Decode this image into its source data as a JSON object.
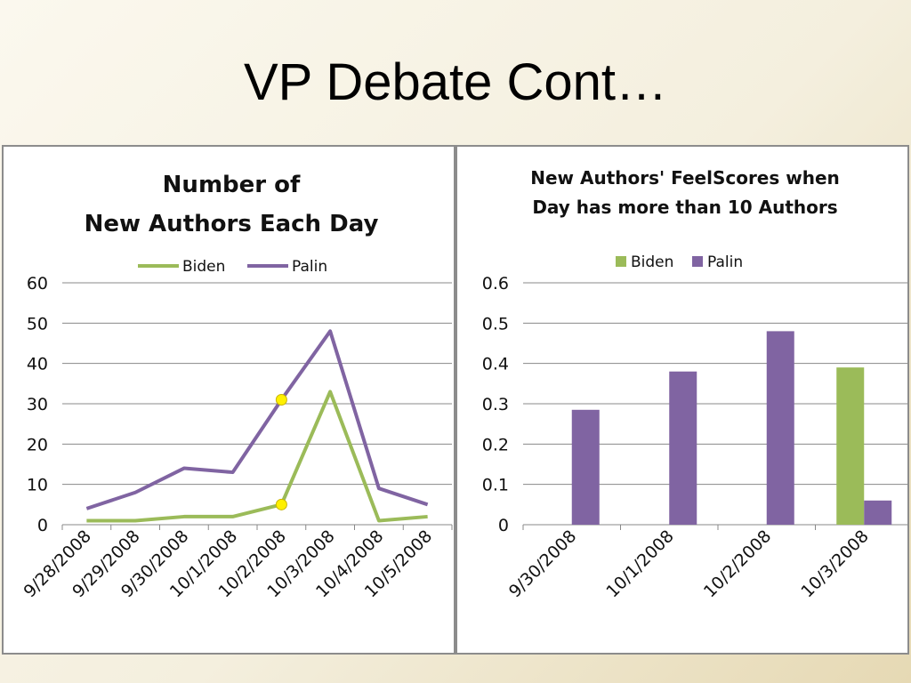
{
  "slide": {
    "title": "VP Debate Cont…"
  },
  "colors": {
    "biden": "#9BBB59",
    "palin": "#8064A2",
    "highlight": "#FFF000",
    "grid": "#888888"
  },
  "chart_data": [
    {
      "type": "line",
      "title_lines": [
        "Number of",
        "New Authors Each Day"
      ],
      "categories": [
        "9/28/2008",
        "9/29/2008",
        "9/30/2008",
        "10/1/2008",
        "10/2/2008",
        "10/3/2008",
        "10/4/2008",
        "10/5/2008"
      ],
      "series": [
        {
          "name": "Biden",
          "values": [
            1,
            1,
            2,
            2,
            5,
            33,
            1,
            2
          ]
        },
        {
          "name": "Palin",
          "values": [
            4,
            8,
            14,
            13,
            31,
            48,
            9,
            5
          ]
        }
      ],
      "highlighted_points": [
        {
          "series": "Palin",
          "category": "10/2/2008",
          "value": 31
        },
        {
          "series": "Biden",
          "category": "10/2/2008",
          "value": 5
        }
      ],
      "ylim": [
        0,
        60
      ],
      "yticks": [
        "0",
        "10",
        "20",
        "30",
        "40",
        "50",
        "60"
      ],
      "grid": true,
      "legend": "top"
    },
    {
      "type": "bar",
      "title_lines": [
        "New Authors' FeelScores when",
        "Day has more than 10 Authors"
      ],
      "categories": [
        "9/30/2008",
        "10/1/2008",
        "10/2/2008",
        "10/3/2008"
      ],
      "series": [
        {
          "name": "Biden",
          "values": [
            null,
            null,
            null,
            0.39
          ]
        },
        {
          "name": "Palin",
          "values": [
            0.285,
            0.38,
            0.48,
            0.06
          ]
        }
      ],
      "ylim": [
        0,
        0.6
      ],
      "yticks": [
        "0",
        "0.1",
        "0.2",
        "0.3",
        "0.4",
        "0.5",
        "0.6"
      ],
      "grid": true,
      "legend": "top"
    }
  ]
}
